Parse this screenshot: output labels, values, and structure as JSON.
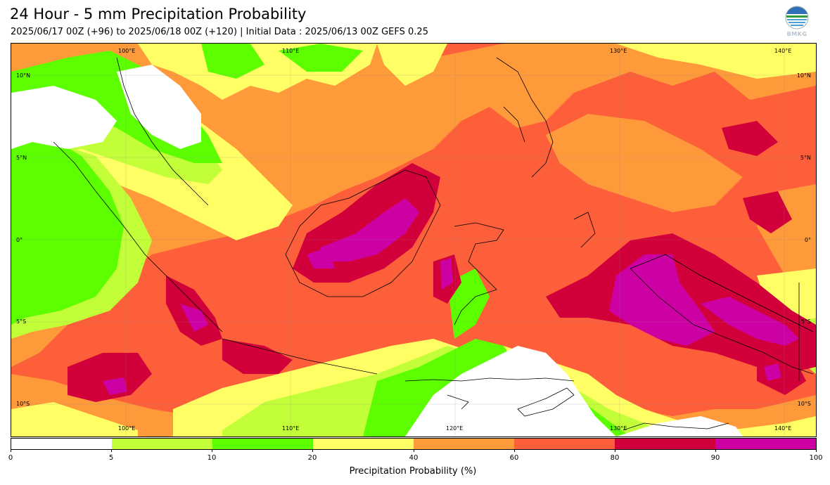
{
  "header": {
    "title": "24 Hour - 5 mm Precipitation Probability",
    "subtitle": "2025/06/17 00Z (+96) to 2025/06/18 00Z (+120) | Initial Data : 2025/06/13 00Z GEFS 0.25",
    "logo_text": "BMKG"
  },
  "map": {
    "lon_labels": [
      "100°E",
      "110°E",
      "120°E",
      "130°E",
      "140°E"
    ],
    "lat_labels": [
      "10°N",
      "5°N",
      "0°",
      "5°S",
      "10°S"
    ],
    "colors": {
      "p0": "#ffffff",
      "p5": "#c3ff39",
      "p10": "#5dff00",
      "p20": "#ffff65",
      "p40": "#ff9a3a",
      "p60": "#fd5f3a",
      "p80": "#d2003a",
      "p90": "#cc00a3"
    }
  },
  "colorbar": {
    "title": "Precipitation Probability (%)",
    "ticks": [
      "0",
      "5",
      "10",
      "20",
      "40",
      "60",
      "80",
      "90",
      "100"
    ],
    "colors": [
      "#ffffff",
      "#c3ff39",
      "#5dff00",
      "#ffff65",
      "#ff9a3a",
      "#fd5f3a",
      "#d2003a",
      "#cc00a3"
    ]
  }
}
